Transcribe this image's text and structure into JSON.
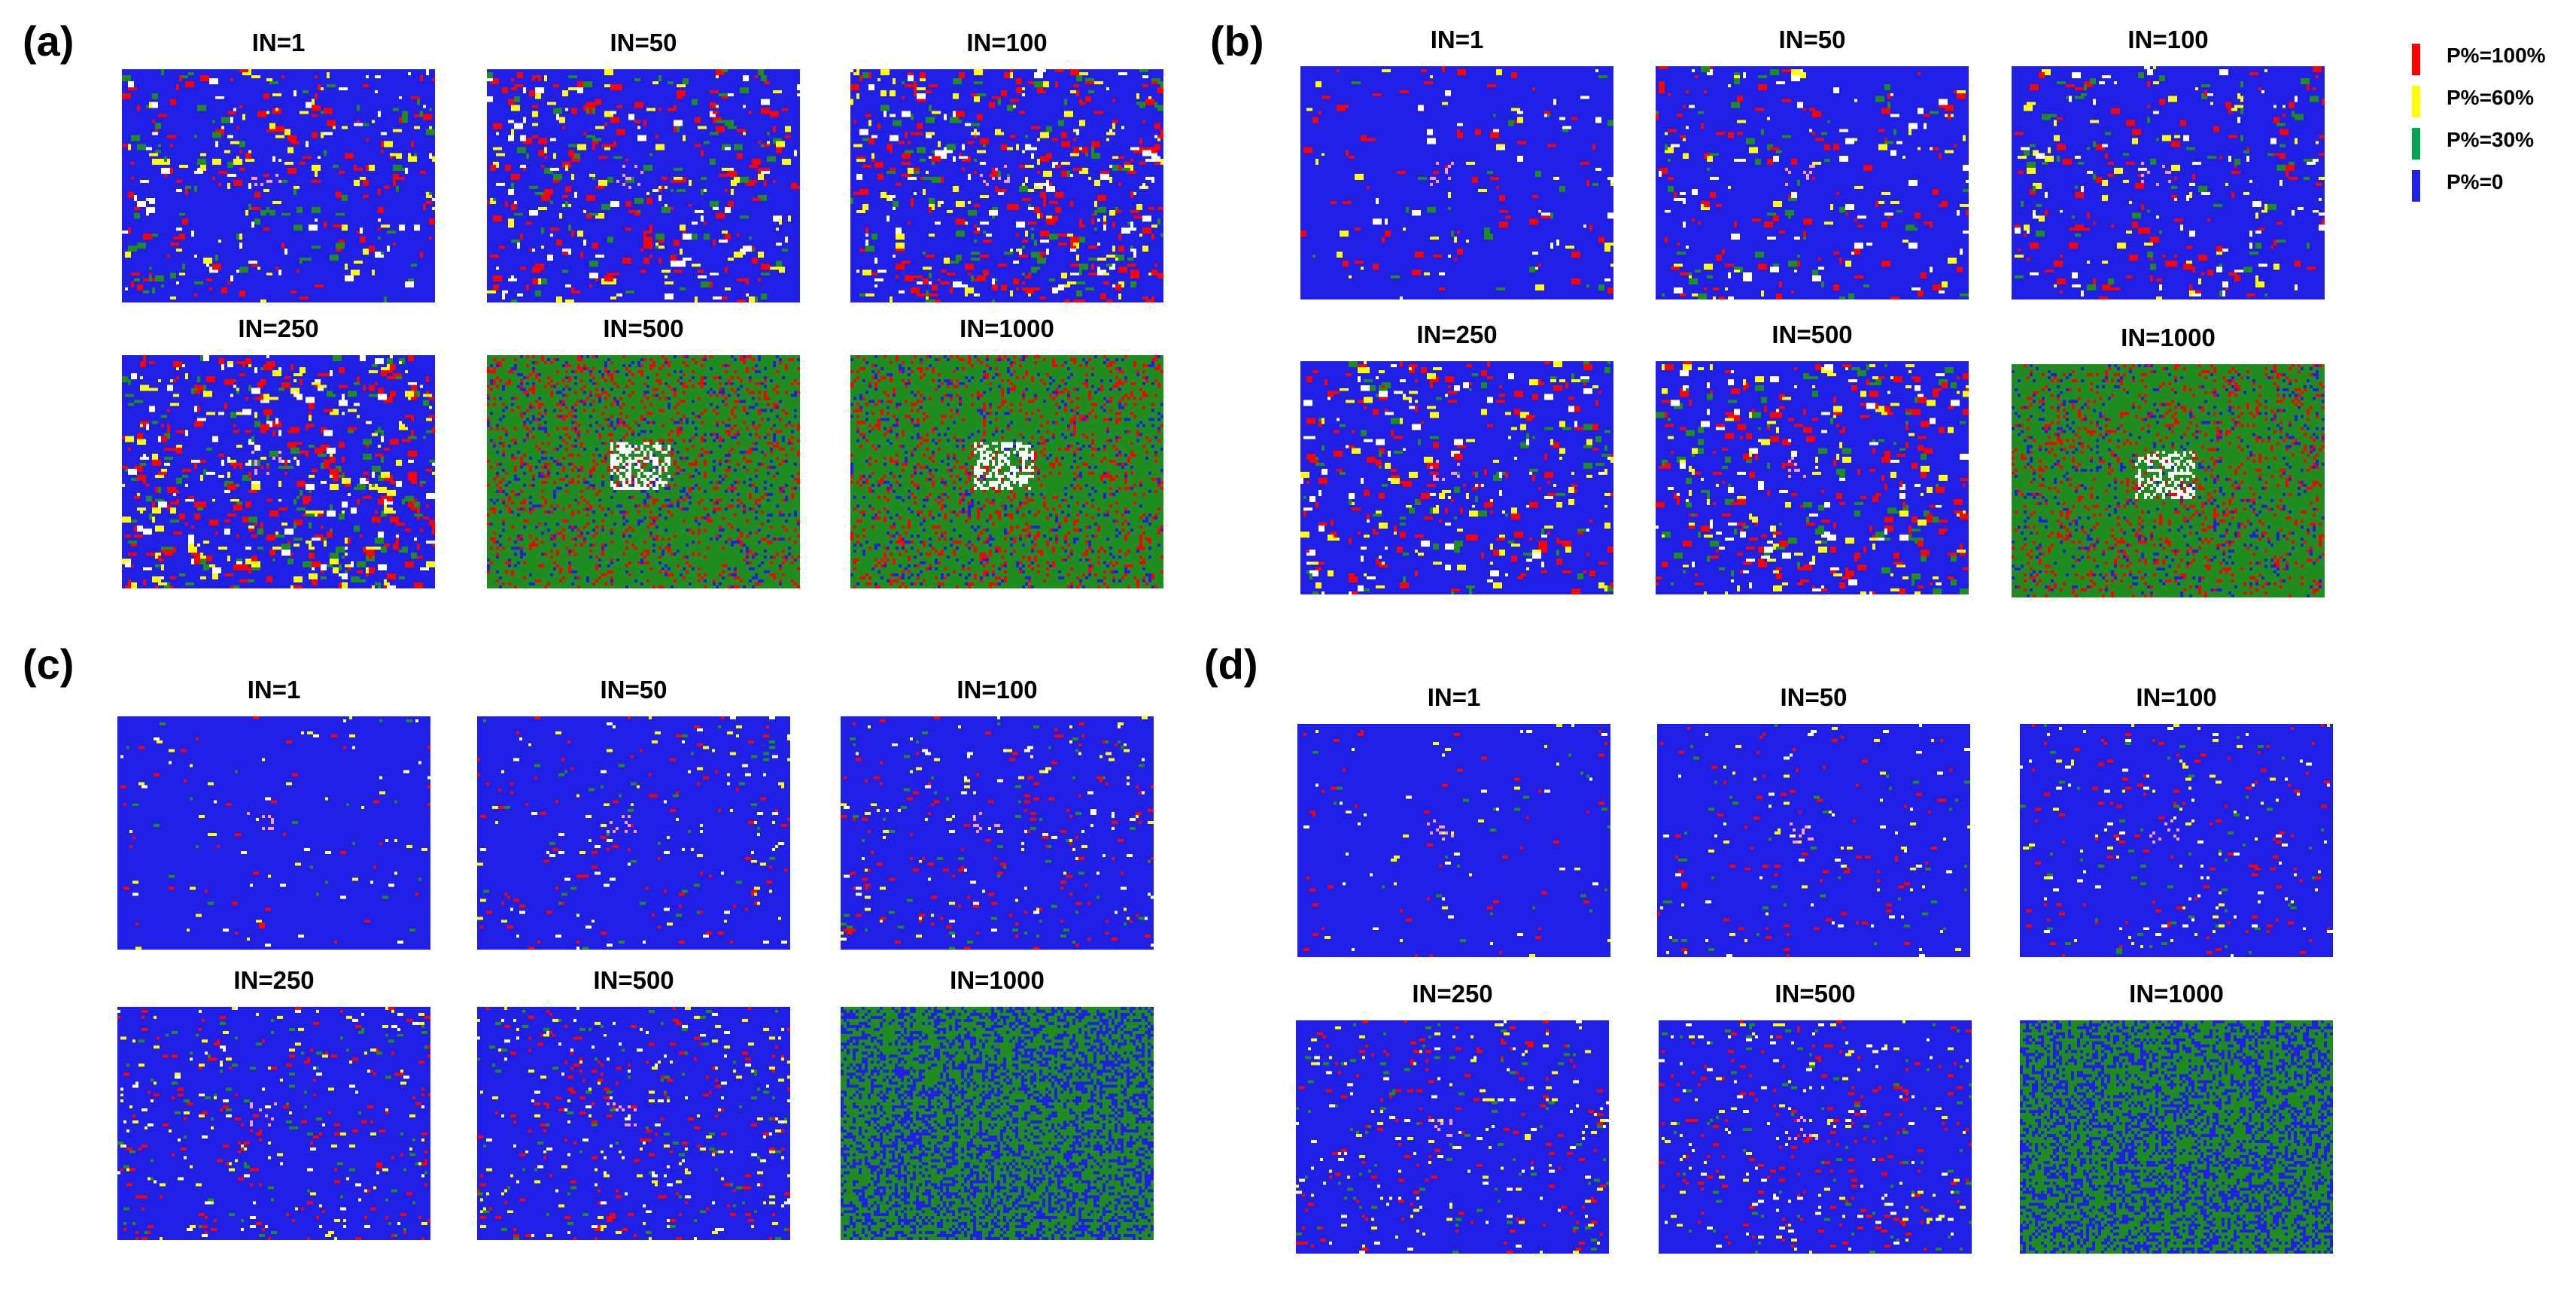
{
  "figure": {
    "panels": [
      {
        "letter": "(a)",
        "subplots": [
          {
            "label": "IN=1",
            "density": 0.18,
            "mode": "dense"
          },
          {
            "label": "IN=50",
            "density": 0.22,
            "mode": "dense"
          },
          {
            "label": "IN=100",
            "density": 0.3,
            "mode": "dense"
          },
          {
            "label": "IN=250",
            "density": 0.34,
            "mode": "dense"
          },
          {
            "label": "IN=500",
            "density": 0.0,
            "mode": "green"
          },
          {
            "label": "IN=1000",
            "density": 0.0,
            "mode": "green"
          }
        ]
      },
      {
        "letter": "(b)",
        "subplots": [
          {
            "label": "IN=1",
            "density": 0.08,
            "mode": "dense"
          },
          {
            "label": "IN=50",
            "density": 0.14,
            "mode": "dense"
          },
          {
            "label": "IN=100",
            "density": 0.16,
            "mode": "dense"
          },
          {
            "label": "IN=250",
            "density": 0.22,
            "mode": "dense"
          },
          {
            "label": "IN=500",
            "density": 0.24,
            "mode": "dense"
          },
          {
            "label": "IN=1000",
            "density": 0.0,
            "mode": "green"
          }
        ]
      },
      {
        "letter": "(c)",
        "subplots": [
          {
            "label": "IN=1",
            "density": 0.03,
            "mode": "sparse"
          },
          {
            "label": "IN=50",
            "density": 0.06,
            "mode": "sparse"
          },
          {
            "label": "IN=100",
            "density": 0.08,
            "mode": "sparse"
          },
          {
            "label": "IN=250",
            "density": 0.1,
            "mode": "sparse"
          },
          {
            "label": "IN=500",
            "density": 0.11,
            "mode": "sparse"
          },
          {
            "label": "IN=1000",
            "density": 0.0,
            "mode": "green-mix"
          }
        ]
      },
      {
        "letter": "(d)",
        "subplots": [
          {
            "label": "IN=1",
            "density": 0.03,
            "mode": "sparse"
          },
          {
            "label": "IN=50",
            "density": 0.05,
            "mode": "sparse"
          },
          {
            "label": "IN=100",
            "density": 0.07,
            "mode": "sparse"
          },
          {
            "label": "IN=250",
            "density": 0.09,
            "mode": "sparse"
          },
          {
            "label": "IN=500",
            "density": 0.1,
            "mode": "sparse"
          },
          {
            "label": "IN=1000",
            "density": 0.0,
            "mode": "green-mix"
          }
        ]
      }
    ]
  },
  "legend": [
    {
      "label": "P%=100%",
      "color": "#ff0000"
    },
    {
      "label": "P%=60%",
      "color": "#ffff00"
    },
    {
      "label": "P%=30%",
      "color": "#00a651"
    },
    {
      "label": "P%=0",
      "color": "#1f1fe6"
    }
  ],
  "colors": {
    "blue": "#1f1fe6",
    "red": "#ff0000",
    "yellow": "#ffff00",
    "green": "#1e8c1e",
    "white": "#ffffff",
    "pink": "#ff9bd6"
  }
}
